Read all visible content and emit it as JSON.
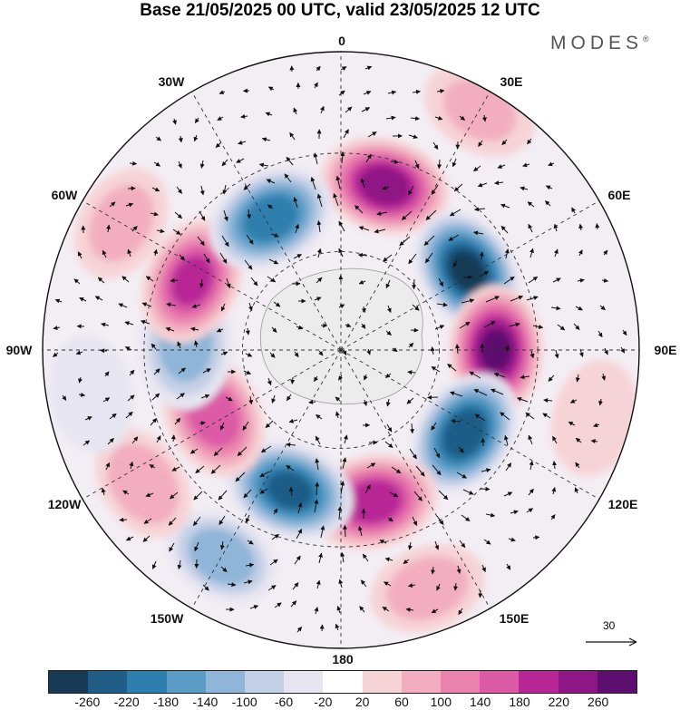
{
  "title": "Base 21/05/2025 00 UTC, valid 23/05/2025 12 UTC",
  "brand": {
    "name": "MODES",
    "mark": "®"
  },
  "longitude_labels": {
    "lon_0": "0",
    "lon_30e": "30E",
    "lon_60e": "60E",
    "lon_90e": "90E",
    "lon_120e": "120E",
    "lon_150e": "150E",
    "lon_180": "180",
    "lon_150w": "150W",
    "lon_120w": "120W",
    "lon_90w": "90W",
    "lon_60w": "60W",
    "lon_30w": "30W"
  },
  "reference_vector": {
    "value": "30"
  },
  "colorbar": {
    "colors": [
      "#173a57",
      "#1f5d87",
      "#2f7fae",
      "#5a9cc6",
      "#8fb5d8",
      "#c4d0e6",
      "#e7e5f1",
      "#ffffff",
      "#f6d3d6",
      "#f2aec0",
      "#ea84af",
      "#dc5aa6",
      "#b82796",
      "#8f1785",
      "#5c0f6e"
    ],
    "tick_labels": [
      "-260",
      "-220",
      "-180",
      "-140",
      "-100",
      "-60",
      "-20",
      "20",
      "60",
      "100",
      "140",
      "180",
      "220",
      "260"
    ]
  },
  "anomaly_cells": [
    {
      "lon": 15,
      "r": 0.57,
      "value": 240
    },
    {
      "lon": 58,
      "r": 0.5,
      "value": -270
    },
    {
      "lon": 90,
      "r": 0.52,
      "value": 260
    },
    {
      "lon": 124,
      "r": 0.5,
      "value": -250
    },
    {
      "lon": 168,
      "r": 0.52,
      "value": 210
    },
    {
      "lon": 200,
      "r": 0.5,
      "value": -230
    },
    {
      "lon": 210,
      "r": 0.8,
      "value": -130
    },
    {
      "lon": 243,
      "r": 0.48,
      "value": 170
    },
    {
      "lon": 236,
      "r": 0.8,
      "value": 90
    },
    {
      "lon": 272,
      "r": 0.52,
      "value": -120
    },
    {
      "lon": 295,
      "r": 0.55,
      "value": 190
    },
    {
      "lon": 300,
      "r": 0.85,
      "value": 70
    },
    {
      "lon": 332,
      "r": 0.5,
      "value": -210
    },
    {
      "lon": 30,
      "r": 0.93,
      "value": 60
    },
    {
      "lon": 160,
      "r": 0.85,
      "value": 80
    },
    {
      "lon": 105,
      "r": 0.88,
      "value": 40
    },
    {
      "lon": 260,
      "r": 0.85,
      "value": -50
    }
  ]
}
